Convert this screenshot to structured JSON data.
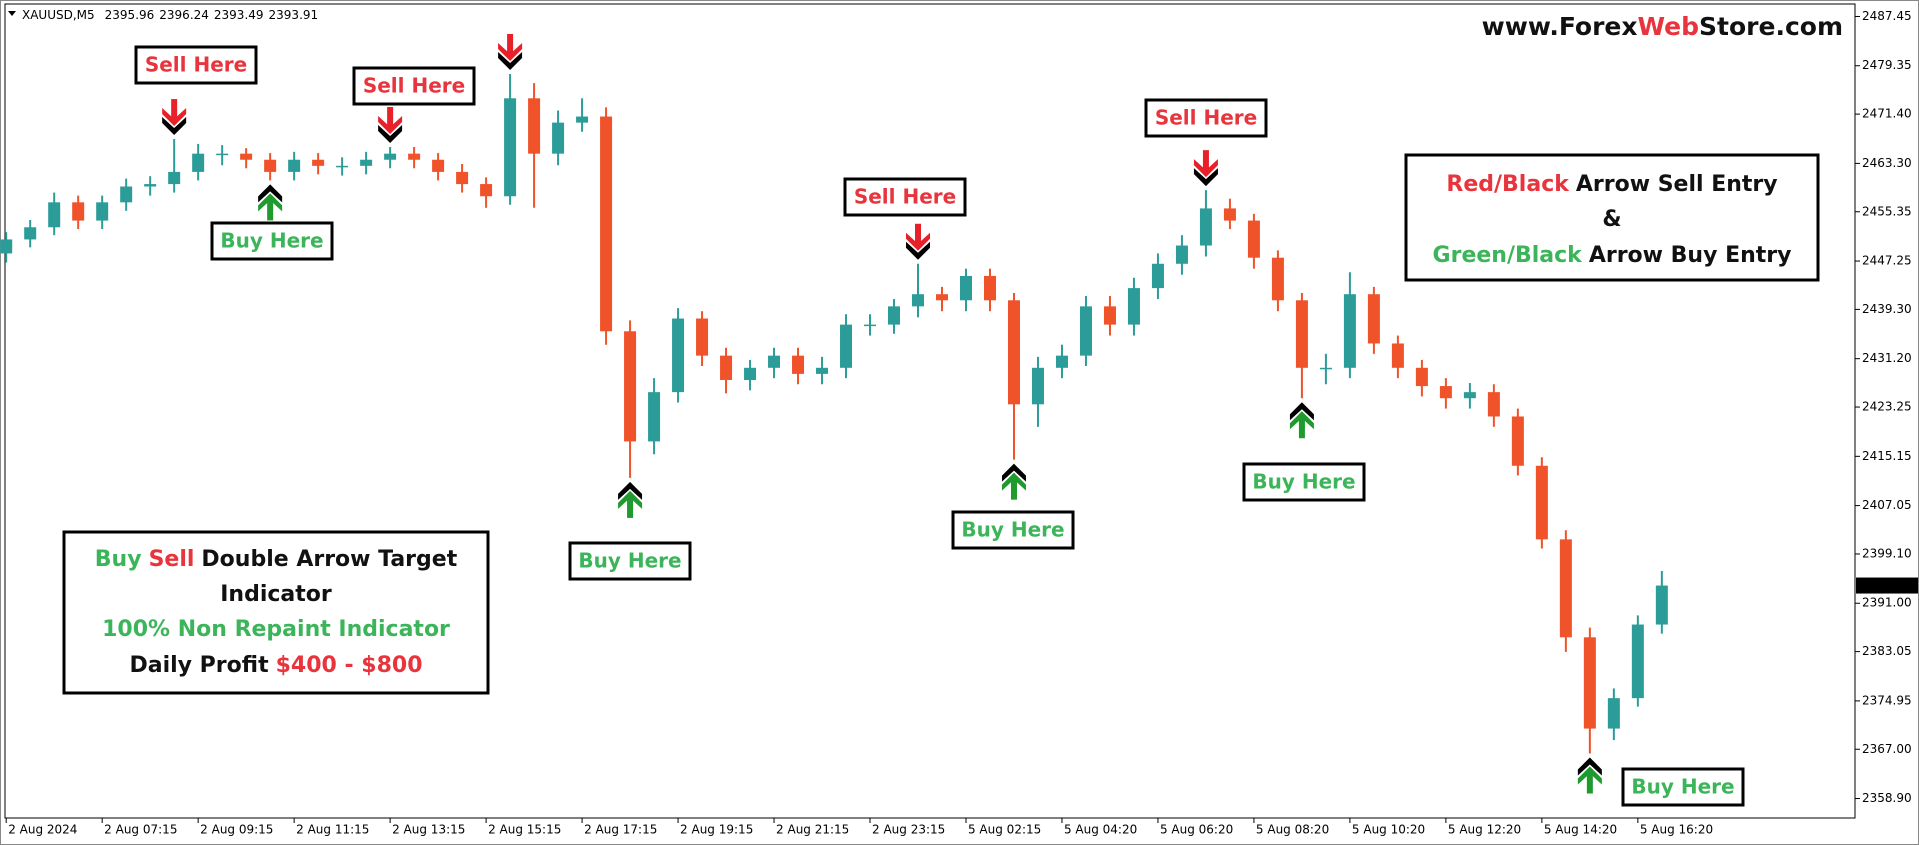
{
  "chart_data": {
    "type": "candlestick",
    "symbol": "XAUUSD,M5",
    "ohlc": [
      2395.96,
      2396.24,
      2393.49,
      2393.91
    ],
    "last_price": 2393.91,
    "up_color": "#2b9c98",
    "down_color": "#f0522a",
    "open": [
      2448.5,
      2450.8,
      2452.8,
      2456.9,
      2453.9,
      2456.9,
      2459.5,
      2459.9,
      2461.9,
      2464.9,
      2464.9,
      2463.9,
      2461.9,
      2463.9,
      2462.9,
      2462.9,
      2463.9,
      2464.9,
      2463.9,
      2461.9,
      2459.9,
      2457.9,
      2474.0,
      2464.9,
      2470.0,
      2471.0,
      2435.7,
      2417.6,
      2425.7,
      2437.8,
      2431.7,
      2427.7,
      2429.7,
      2431.7,
      2428.7,
      2429.7,
      2436.8,
      2436.8,
      2439.8,
      2441.8,
      2440.8,
      2444.8,
      2440.8,
      2423.7,
      2429.7,
      2431.7,
      2439.8,
      2436.8,
      2442.8,
      2446.8,
      2449.8,
      2455.9,
      2453.9,
      2447.8,
      2440.8,
      2429.7,
      2429.7,
      2441.8,
      2433.7,
      2429.7,
      2426.7,
      2424.7,
      2425.7,
      2421.7,
      2413.6,
      2401.5,
      2385.4,
      2370.4,
      2375.4,
      2387.5
    ],
    "high": [
      2452.0,
      2454.0,
      2458.5,
      2458.0,
      2458.0,
      2460.8,
      2461.2,
      2467.3,
      2466.5,
      2466.3,
      2465.8,
      2465.0,
      2465.2,
      2465.0,
      2464.3,
      2465.2,
      2466.0,
      2466.0,
      2465.0,
      2463.2,
      2461.0,
      2478.0,
      2476.5,
      2472.0,
      2474.0,
      2472.5,
      2437.5,
      2428.0,
      2439.5,
      2439.0,
      2433.0,
      2431.0,
      2433.0,
      2433.0,
      2431.5,
      2438.5,
      2438.5,
      2441.0,
      2446.8,
      2443.0,
      2446.0,
      2446.0,
      2442.0,
      2431.5,
      2433.5,
      2441.5,
      2441.5,
      2444.5,
      2448.5,
      2451.5,
      2458.9,
      2457.5,
      2455.0,
      2449.0,
      2442.0,
      2432.0,
      2445.4,
      2443.0,
      2435.0,
      2431.0,
      2428.0,
      2427.2,
      2427.0,
      2423.0,
      2415.0,
      2403.0,
      2387.0,
      2377.0,
      2389.0,
      2396.3
    ],
    "low": [
      2447.0,
      2449.5,
      2451.5,
      2452.5,
      2452.5,
      2455.5,
      2458.0,
      2458.5,
      2460.5,
      2463.0,
      2462.5,
      2460.5,
      2460.5,
      2461.5,
      2461.3,
      2461.5,
      2462.5,
      2462.5,
      2460.5,
      2458.5,
      2456.0,
      2456.5,
      2456.0,
      2463.0,
      2468.5,
      2433.5,
      2411.6,
      2415.5,
      2424.0,
      2430.0,
      2425.5,
      2426.0,
      2428.0,
      2427.0,
      2427.0,
      2428.0,
      2435.0,
      2435.3,
      2438.0,
      2439.0,
      2439.0,
      2439.0,
      2414.6,
      2420.0,
      2428.0,
      2430.0,
      2435.0,
      2435.0,
      2441.0,
      2445.0,
      2448.0,
      2452.5,
      2446.0,
      2439.0,
      2424.7,
      2427.0,
      2428.0,
      2432.0,
      2428.0,
      2425.0,
      2423.0,
      2423.0,
      2420.0,
      2412.0,
      2400.0,
      2383.0,
      2366.3,
      2368.5,
      2374.0,
      2386.0
    ],
    "close": [
      2450.8,
      2452.8,
      2456.9,
      2453.9,
      2456.9,
      2459.5,
      2459.9,
      2461.9,
      2464.9,
      2464.9,
      2463.9,
      2461.9,
      2463.9,
      2462.9,
      2462.9,
      2463.9,
      2464.9,
      2463.9,
      2461.9,
      2459.9,
      2457.9,
      2474.0,
      2464.9,
      2470.0,
      2471.0,
      2435.7,
      2417.6,
      2425.7,
      2437.8,
      2431.7,
      2427.7,
      2429.7,
      2431.7,
      2428.7,
      2429.7,
      2436.8,
      2436.8,
      2439.8,
      2441.8,
      2440.8,
      2444.8,
      2440.8,
      2423.7,
      2429.7,
      2431.7,
      2439.8,
      2436.8,
      2442.8,
      2446.8,
      2449.8,
      2455.9,
      2453.9,
      2447.8,
      2440.8,
      2429.7,
      2429.7,
      2441.8,
      2433.7,
      2429.7,
      2426.7,
      2424.7,
      2425.7,
      2421.7,
      2413.6,
      2401.5,
      2385.4,
      2370.4,
      2375.4,
      2387.5,
      2393.91
    ],
    "ylim": [
      2355.7,
      2489.5
    ],
    "yticks": [
      2487.45,
      2479.35,
      {
        "value": 2471.4,
        "label": "2471.40"
      },
      {
        "value": 2463.3,
        "label": "2463.30"
      },
      2455.35,
      2447.25,
      {
        "value": 2439.3,
        "label": "2439.30"
      },
      {
        "value": 2431.2,
        "label": "2431.20"
      },
      2423.25,
      2415.15,
      2407.05,
      {
        "value": 2399.1,
        "label": "2399.10"
      },
      {
        "value": 2391,
        "label": "2391.00"
      },
      2383.05,
      2374.95,
      {
        "value": 2367,
        "label": "2367.00"
      },
      {
        "value": 2358.9,
        "label": "2358.90"
      }
    ],
    "xlim": [
      -0.05,
      77.05
    ],
    "xticks": [
      {
        "value": 0,
        "label": "2 Aug 2024"
      },
      {
        "value": 4,
        "label": "2 Aug 07:15"
      },
      {
        "value": 8,
        "label": "2 Aug 09:15"
      },
      {
        "value": 12,
        "label": "2 Aug 11:15"
      },
      {
        "value": 16,
        "label": "2 Aug 13:15"
      },
      {
        "value": 20,
        "label": "2 Aug 15:15"
      },
      {
        "value": 24,
        "label": "2 Aug 17:15"
      },
      {
        "value": 28,
        "label": "2 Aug 19:15"
      },
      {
        "value": 32,
        "label": "2 Aug 21:15"
      },
      {
        "value": 36,
        "label": "2 Aug 23:15"
      },
      {
        "value": 40,
        "label": "5 Aug 02:15"
      },
      {
        "value": 44,
        "label": "5 Aug 04:20"
      },
      {
        "value": 48,
        "label": "5 Aug 06:20"
      },
      {
        "value": 52,
        "label": "5 Aug 08:20"
      },
      {
        "value": 56,
        "label": "5 Aug 10:20"
      },
      {
        "value": 60,
        "label": "5 Aug 12:20"
      },
      {
        "value": 64,
        "label": "5 Aug 14:20"
      },
      {
        "value": 68,
        "label": "5 Aug 16:20"
      }
    ],
    "watermark": [
      "www.Forex",
      "Web",
      "Store.com"
    ],
    "legend_box": [
      [
        "Red/Black",
        "Arrow Sell Entry"
      ],
      [
        "&"
      ],
      [
        "Green/Black",
        "Arrow Buy Entry"
      ]
    ],
    "info_box": [
      [
        "Buy",
        "Sell",
        "Double Arrow Target"
      ],
      [
        "Indicator"
      ],
      [
        "100% Non Repaint Indicator"
      ],
      [
        "Daily Profit",
        "$400 - $800"
      ]
    ],
    "annotations": [
      "Sell Here",
      "Buy Here",
      "Sell Here",
      "Sell Here",
      "Buy Here",
      "Sell Here",
      "Buy Here",
      "Sell Here",
      "Buy Here",
      "Buy Here"
    ]
  }
}
